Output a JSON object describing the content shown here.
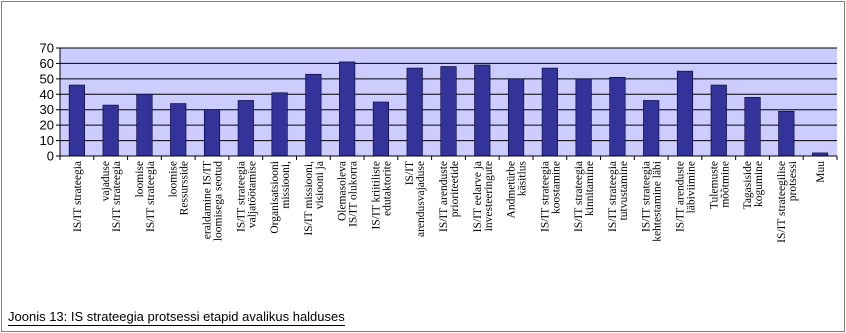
{
  "caption": "Joonis 13: IS strateegia protsessi etapid avalikus halduses",
  "colors": {
    "plot_bg": "#ccccff",
    "bar_fill": "#333399",
    "bar_stroke": "#000033",
    "gridline": "#000000"
  },
  "chart_data": {
    "type": "bar",
    "title": "",
    "xlabel": "",
    "ylabel": "",
    "ylim": [
      0,
      70
    ],
    "yticks": [
      0,
      10,
      20,
      30,
      40,
      50,
      60,
      70
    ],
    "grid": true,
    "legend": "none",
    "categories": [
      [
        "IS/IT strateegia"
      ],
      [
        "vajaduse",
        "IS/IT strateegia"
      ],
      [
        "loomise",
        "IS/IT strateegia"
      ],
      [
        "loomise",
        "Ressursside"
      ],
      [
        "eraldamine IS/IT",
        "loomisega seotud"
      ],
      [
        "IS/IT strateegia",
        "valjatöötamise"
      ],
      [
        "Organisatsiooni",
        "missiooni,"
      ],
      [
        "IS/IT missiooni,",
        "visiooni ja"
      ],
      [
        "Olemasoleva",
        "IS/IT olukorra"
      ],
      [
        "IS/IT kriitiliste",
        "edutaktorite"
      ],
      [
        "IS/IT",
        "arendusvajaduse"
      ],
      [
        "IS/IT arenduste",
        "prioriteetide"
      ],
      [
        "IS/IT eelarve ja",
        "investeeringute"
      ],
      [
        "Andmetürbe",
        "käsitlus"
      ],
      [
        "IS/IT strateegia",
        "koostamine"
      ],
      [
        "IS/IT strateegia",
        "kinnitamine"
      ],
      [
        "IS/IT strateegia",
        "tutvustamine"
      ],
      [
        "IS/IT strateegia",
        "kehtestamine läbi"
      ],
      [
        "IS/IT arenduste",
        "läbiviimine"
      ],
      [
        "Tulemuste",
        "mõõtmine"
      ],
      [
        "Tagasiside",
        "kogumine"
      ],
      [
        "IS/IT strateegilise",
        "protsessi"
      ],
      [
        "Muu"
      ]
    ],
    "values": [
      46,
      33,
      40,
      34,
      30,
      36,
      41,
      53,
      61,
      35,
      57,
      58,
      59,
      50,
      57,
      50,
      51,
      36,
      55,
      46,
      38,
      29,
      2
    ]
  }
}
